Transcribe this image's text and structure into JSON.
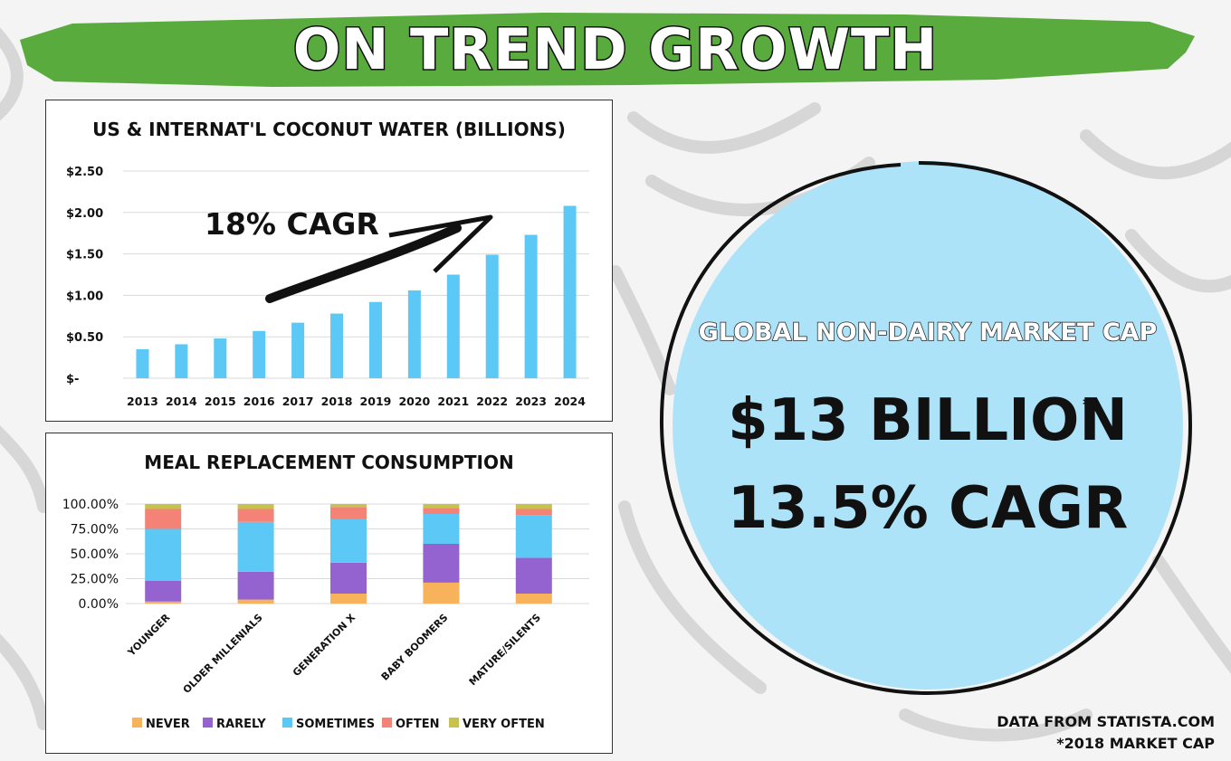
{
  "page": {
    "title": "ON TREND GROWTH",
    "banner_color": "#5aab3e"
  },
  "coconut_chart": {
    "title": "US & INTERNAT'L COCONUT WATER (BILLIONS)",
    "annotation": "18% CAGR",
    "bar_color": "#5bc8f5"
  },
  "meal_chart": {
    "title": "MEAL REPLACEMENT CONSUMPTION"
  },
  "nondairy": {
    "label": "GLOBAL NON-DAIRY MARKET CAP",
    "value": "$13 BILLION",
    "asterisk": "*",
    "cagr": "13.5% CAGR",
    "circle_color": "#ade3f8"
  },
  "footnotes": {
    "source": "DATA FROM STATISTA.COM",
    "note": "*2018 MARKET CAP"
  },
  "chart_data": [
    {
      "type": "bar",
      "title": "US & INTERNAT'L COCONUT WATER (BILLIONS)",
      "categories": [
        "2013",
        "2014",
        "2015",
        "2016",
        "2017",
        "2018",
        "2019",
        "2020",
        "2021",
        "2022",
        "2023",
        "2024"
      ],
      "values": [
        0.35,
        0.41,
        0.48,
        0.57,
        0.67,
        0.78,
        0.92,
        1.06,
        1.25,
        1.49,
        1.73,
        2.08
      ],
      "ylim": [
        0,
        2.5
      ],
      "yticks": [
        0,
        0.5,
        1.0,
        1.5,
        2.0,
        2.5
      ],
      "ytick_labels": [
        "$-",
        "$0.50",
        "$1.00",
        "$1.50",
        "$2.00",
        "$2.50"
      ],
      "grid": true,
      "legend": "none"
    },
    {
      "type": "bar",
      "stacked": true,
      "title": "MEAL REPLACEMENT CONSUMPTION",
      "categories": [
        "YOUNGER",
        "OLDER MILLENIALS",
        "GENERATION X",
        "BABY BOOMERS",
        "MATURE/SILENTS"
      ],
      "ylim": [
        0,
        100
      ],
      "yticks": [
        0,
        25,
        50,
        75,
        100
      ],
      "ytick_labels": [
        "0.00%",
        "25.00%",
        "50.00%",
        "75.00%",
        "100.00%"
      ],
      "legend": "bottom",
      "series": [
        {
          "name": "NEVER",
          "color": "#f7b25b",
          "values": [
            2,
            4,
            10,
            21,
            10
          ]
        },
        {
          "name": "RARELY",
          "color": "#9563cf",
          "values": [
            21,
            28,
            31,
            39,
            36
          ]
        },
        {
          "name": "SOMETIMES",
          "color": "#5bc8f5",
          "values": [
            52,
            50,
            44,
            30,
            43
          ]
        },
        {
          "name": "OFTEN",
          "color": "#f58277",
          "values": [
            20,
            13,
            12,
            6,
            6
          ]
        },
        {
          "name": "VERY OFTEN",
          "color": "#c6c24d",
          "values": [
            5,
            5,
            3,
            4,
            5
          ]
        }
      ]
    }
  ]
}
